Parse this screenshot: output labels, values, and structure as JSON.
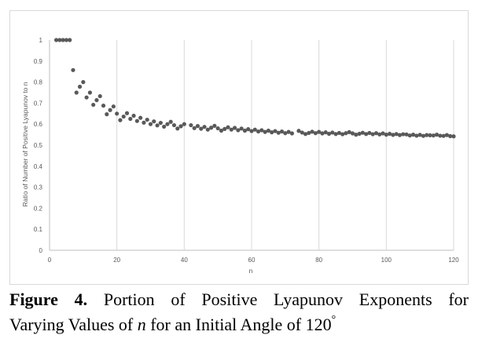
{
  "chart_data": {
    "type": "scatter",
    "title": "",
    "xlabel": "n",
    "ylabel": "Ratio of Number  of Positive Lyapunov to n",
    "xlim": [
      0,
      120
    ],
    "ylim": [
      0,
      1
    ],
    "x_ticks": [
      0,
      20,
      40,
      60,
      80,
      100,
      120
    ],
    "y_ticks": [
      0,
      0.1,
      0.2,
      0.3,
      0.4,
      0.5,
      0.6,
      0.7,
      0.8,
      0.9,
      1
    ],
    "x_tick_labels": [
      "0",
      "20",
      "40",
      "60",
      "80",
      "100",
      "120"
    ],
    "y_tick_labels": [
      "0",
      "0.1",
      "0.2",
      "0.3",
      "0.4",
      "0.5",
      "0.6",
      "0.7",
      "0.8",
      "0.9",
      "1"
    ],
    "grid": "vertical",
    "marker_color": "#595959",
    "series": [
      {
        "name": "Ratio",
        "x": [
          2,
          3,
          4,
          5,
          6,
          7,
          8,
          9,
          10,
          11,
          12,
          13,
          14,
          15,
          16,
          17,
          18,
          19,
          20,
          21,
          22,
          23,
          24,
          25,
          26,
          27,
          28,
          29,
          30,
          31,
          32,
          33,
          34,
          35,
          36,
          37,
          38,
          39,
          40,
          42,
          43,
          44,
          45,
          46,
          47,
          48,
          49,
          50,
          51,
          52,
          53,
          54,
          55,
          56,
          57,
          58,
          59,
          60,
          61,
          62,
          63,
          64,
          65,
          66,
          67,
          68,
          69,
          70,
          71,
          72,
          74,
          75,
          76,
          77,
          78,
          79,
          80,
          81,
          82,
          83,
          84,
          85,
          86,
          87,
          88,
          89,
          90,
          91,
          92,
          93,
          94,
          95,
          96,
          97,
          98,
          99,
          100,
          101,
          102,
          103,
          104,
          105,
          106,
          107,
          108,
          109,
          110,
          111,
          112,
          113,
          114,
          115,
          116,
          117,
          118,
          119,
          120
        ],
        "y": [
          1,
          1,
          1,
          1,
          1,
          0.857,
          0.75,
          0.778,
          0.8,
          0.727,
          0.75,
          0.692,
          0.714,
          0.733,
          0.688,
          0.647,
          0.667,
          0.684,
          0.65,
          0.619,
          0.636,
          0.652,
          0.625,
          0.64,
          0.615,
          0.63,
          0.607,
          0.621,
          0.6,
          0.613,
          0.594,
          0.606,
          0.588,
          0.6,
          0.611,
          0.595,
          0.579,
          0.59,
          0.6,
          0.595,
          0.581,
          0.591,
          0.578,
          0.587,
          0.574,
          0.583,
          0.592,
          0.58,
          0.569,
          0.577,
          0.585,
          0.574,
          0.582,
          0.571,
          0.579,
          0.569,
          0.576,
          0.567,
          0.574,
          0.565,
          0.571,
          0.563,
          0.569,
          0.561,
          0.567,
          0.559,
          0.565,
          0.557,
          0.563,
          0.556,
          0.568,
          0.56,
          0.553,
          0.558,
          0.564,
          0.557,
          0.563,
          0.556,
          0.561,
          0.554,
          0.56,
          0.553,
          0.558,
          0.552,
          0.557,
          0.562,
          0.556,
          0.55,
          0.554,
          0.559,
          0.553,
          0.558,
          0.552,
          0.557,
          0.551,
          0.556,
          0.55,
          0.554,
          0.549,
          0.553,
          0.548,
          0.552,
          0.551,
          0.546,
          0.55,
          0.545,
          0.549,
          0.544,
          0.548,
          0.547,
          0.546,
          0.55,
          0.545,
          0.544,
          0.548,
          0.543,
          0.542
        ]
      }
    ]
  },
  "caption": {
    "label": "Figure 4.",
    "line1_text": "Portion of Positive Lyapunov Exponents for",
    "line2_prefix": "Varying Values of",
    "line2_variable": "n",
    "line2_middle": "for an Initial Angle of",
    "line2_angle": "120",
    "line2_degree": "°"
  }
}
